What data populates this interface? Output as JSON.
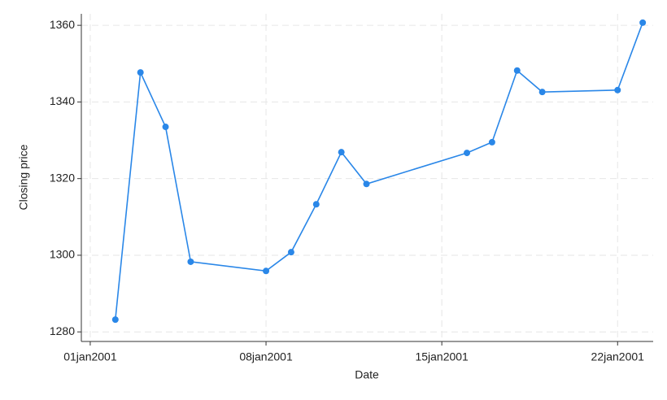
{
  "chart_data": {
    "type": "line",
    "x_label": "Date",
    "y_label": "Closing price",
    "x": [
      "2001-01-02",
      "2001-01-03",
      "2001-01-04",
      "2001-01-05",
      "2001-01-08",
      "2001-01-09",
      "2001-01-10",
      "2001-01-11",
      "2001-01-12",
      "2001-01-16",
      "2001-01-17",
      "2001-01-18",
      "2001-01-19",
      "2001-01-22",
      "2001-01-23"
    ],
    "series": [
      {
        "color": "#2a87e8",
        "values": [
          1283.2,
          1347.7,
          1333.5,
          1298.3,
          1295.9,
          1300.8,
          1313.3,
          1326.9,
          1318.6,
          1326.7,
          1329.5,
          1348.2,
          1342.6,
          1343.1,
          1360.7
        ]
      }
    ],
    "xlim": [
      "2000-12-31T15:30",
      "2001-01-23T10:00"
    ],
    "xticks": [
      {
        "value": "2001-01-01",
        "label": "01jan2001"
      },
      {
        "value": "2001-01-08",
        "label": "08jan2001"
      },
      {
        "value": "2001-01-15",
        "label": "15jan2001"
      },
      {
        "value": "2001-01-22",
        "label": "22jan2001"
      }
    ],
    "ylim": [
      1277.5,
      1363
    ],
    "yticks": [
      1280,
      1300,
      1320,
      1340,
      1360
    ],
    "grid": true
  }
}
